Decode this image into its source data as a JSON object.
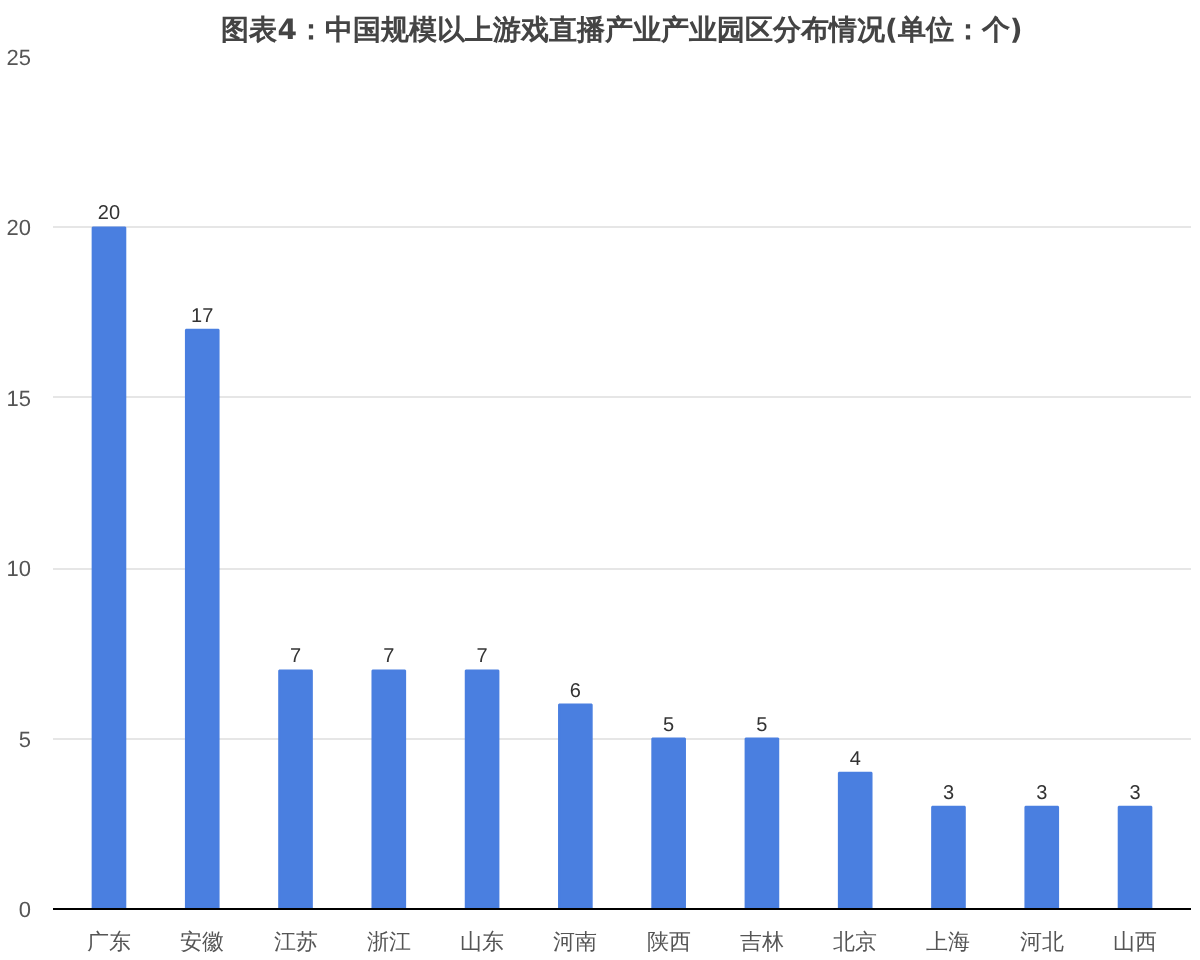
{
  "chart_data": {
    "type": "bar",
    "title": "图表4：中国规模以上游戏直播产业产业园区分布情况(单位：个)",
    "categories": [
      "广东",
      "安徽",
      "江苏",
      "浙江",
      "山东",
      "河南",
      "陕西",
      "吉林",
      "北京",
      "上海",
      "河北",
      "山西"
    ],
    "values": [
      20,
      17,
      7,
      7,
      7,
      6,
      5,
      5,
      4,
      3,
      3,
      3
    ],
    "color": "#4a7fe0",
    "ylim": [
      0,
      25
    ],
    "yticks": [
      0,
      5,
      10,
      15,
      20,
      25
    ],
    "grid": "y",
    "data_labels": true
  }
}
